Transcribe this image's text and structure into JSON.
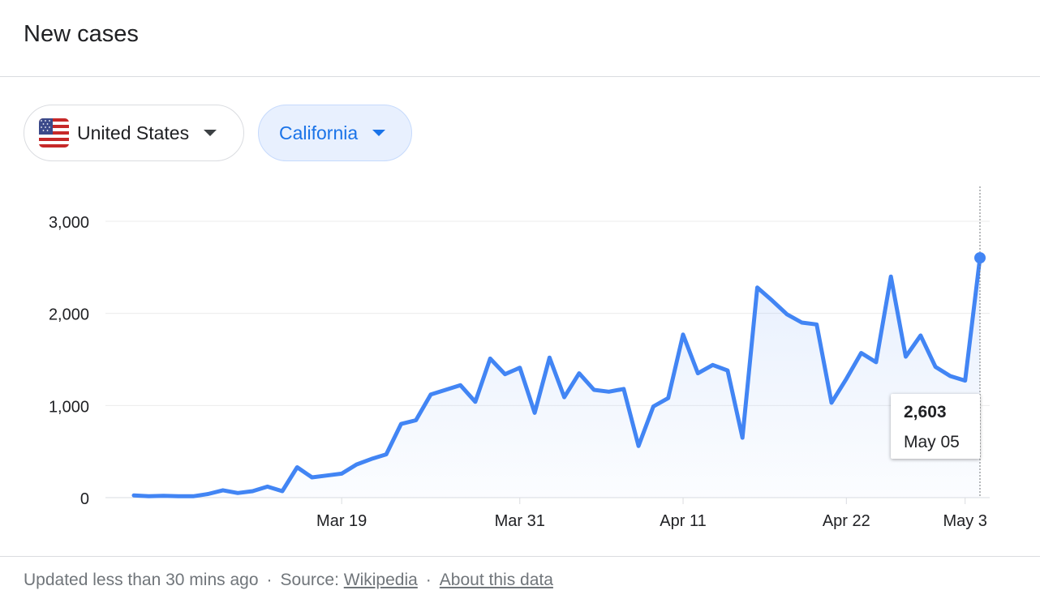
{
  "header": {
    "title": "New cases"
  },
  "filters": {
    "country": {
      "label": "United States",
      "flag_icon": "us-flag-icon"
    },
    "region": {
      "label": "California"
    }
  },
  "tooltip": {
    "value": "2,603",
    "date": "May 05"
  },
  "footer": {
    "updated": "Updated less than 30 mins ago",
    "separator": "·",
    "source_prefix": "Source:",
    "source_link": "Wikipedia",
    "about_link": "About this data"
  },
  "colors": {
    "line": "#4285f4",
    "link": "#1a73e8",
    "text": "#202124",
    "muted": "#70757a"
  },
  "chart_data": {
    "type": "area",
    "x_start": "Mar 05",
    "x_end": "May 05",
    "x_ticks": [
      "Mar 19",
      "Mar 31",
      "Apr 11",
      "Apr 22",
      "May 3"
    ],
    "y_ticks": [
      "0",
      "1,000",
      "2,000",
      "3,000"
    ],
    "ylim": [
      0,
      3000
    ],
    "grid": true,
    "series": [
      {
        "values": [
          25,
          15,
          20,
          15,
          15,
          40,
          80,
          50,
          70,
          120,
          70,
          330,
          220,
          240,
          260,
          360,
          420,
          470,
          800,
          840,
          1120,
          1170,
          1220,
          1040,
          1510,
          1340,
          1410,
          920,
          1520,
          1090,
          1350,
          1170,
          1150,
          1180,
          560,
          990,
          1080,
          1770,
          1350,
          1440,
          1380,
          650,
          2280,
          2140,
          1990,
          1900,
          1880,
          1030,
          1290,
          1570,
          1470,
          2400,
          1530,
          1760,
          1420,
          1320,
          1270,
          2603
        ]
      }
    ]
  }
}
